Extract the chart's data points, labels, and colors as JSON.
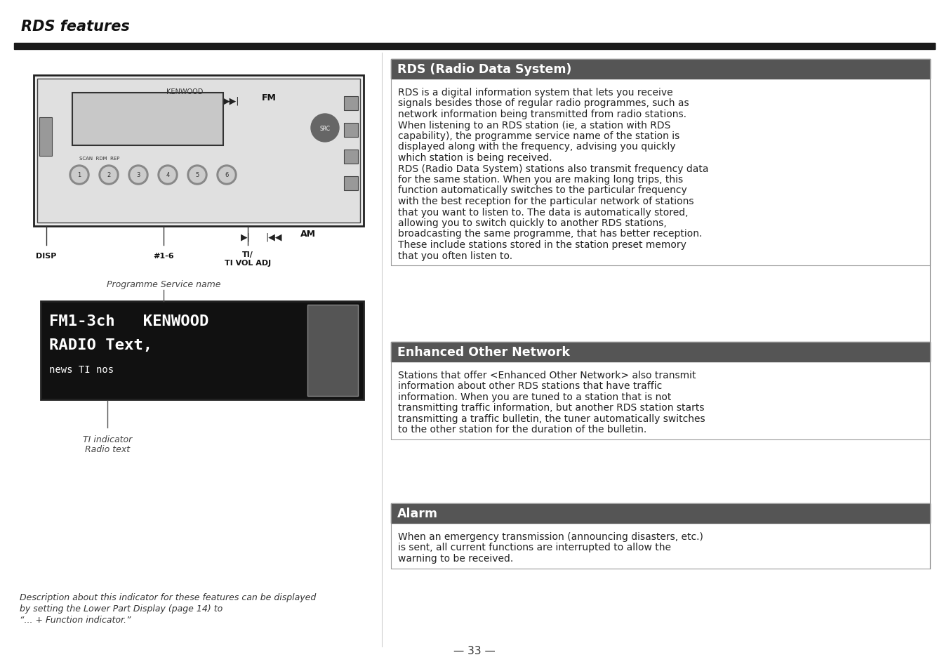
{
  "page_title": "RDS features",
  "bg_color": "#ffffff",
  "title_bar_color": "#555555",
  "title_text_color": "#ffffff",
  "body_text_color": "#222222",
  "section1_title": "RDS (Radio Data System)",
  "section2_title": "Enhanced Other Network",
  "section3_title": "Alarm",
  "lines1": [
    "RDS is a digital information system that lets you receive",
    "signals besides those of regular radio programmes, such as",
    "network information being transmitted from radio stations.",
    "When listening to an RDS station (ie, a station with RDS",
    "capability), the programme service name of the station is",
    "displayed along with the frequency, advising you quickly",
    "which station is being received.",
    "RDS (Radio Data System) stations also transmit frequency data",
    "for the same station. When you are making long trips, this",
    "function automatically switches to the particular frequency",
    "with the best reception for the particular network of stations",
    "that you want to listen to. The data is automatically stored,",
    "allowing you to switch quickly to another RDS stations,",
    "broadcasting the same programme, that has better reception.",
    "These include stations stored in the station preset memory",
    "that you often listen to."
  ],
  "lines2": [
    "Stations that offer <Enhanced Other Network> also transmit",
    "information about other RDS stations that have traffic",
    "information. When you are tuned to a station that is not",
    "transmitting traffic information, but another RDS station starts",
    "transmitting a traffic bulletin, the tuner automatically switches",
    "to the other station for the duration of the bulletin."
  ],
  "lines3": [
    "When an emergency transmission (announcing disasters, etc.)",
    "is sent, all current functions are interrupted to allow the",
    "warning to be received."
  ],
  "display_label1": "Programme Service name",
  "display_label2": "TI indicator",
  "display_label3": "Radio text",
  "footnote_lines": [
    "Description about this indicator for these features can be displayed",
    "by setting the Lower Part Display (page 14) to",
    "“... + Function indicator.”"
  ],
  "page_number": "— 33 —",
  "label_DISP": "DISP",
  "label_16": "#1-6",
  "label_TI1": "TI/",
  "label_TI2": "TI VOL ADJ",
  "label_FM": "FM",
  "label_AM": "AM"
}
